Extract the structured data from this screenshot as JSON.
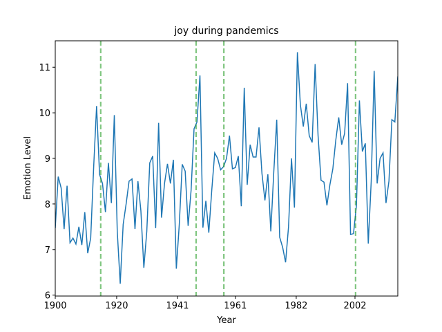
{
  "chart_data": {
    "type": "line",
    "title": "joy during pandemics",
    "xlabel": "Year",
    "ylabel": "Emotion Level",
    "x": [
      1900,
      1901,
      1902,
      1903,
      1904,
      1905,
      1906,
      1907,
      1908,
      1909,
      1910,
      1911,
      1912,
      1913,
      1914,
      1915,
      1916,
      1917,
      1918,
      1919,
      1920,
      1921,
      1922,
      1923,
      1924,
      1925,
      1926,
      1927,
      1928,
      1929,
      1930,
      1931,
      1932,
      1933,
      1934,
      1935,
      1936,
      1937,
      1938,
      1939,
      1940,
      1941,
      1942,
      1943,
      1944,
      1945,
      1946,
      1947,
      1948,
      1949,
      1950,
      1951,
      1952,
      1953,
      1954,
      1955,
      1956,
      1957,
      1958,
      1959,
      1960,
      1961,
      1962,
      1963,
      1964,
      1965,
      1966,
      1967,
      1968,
      1969,
      1970,
      1971,
      1972,
      1973,
      1974,
      1975,
      1976,
      1977,
      1978,
      1979,
      1980,
      1981,
      1982,
      1983,
      1984,
      1985,
      1986,
      1987,
      1988,
      1989,
      1990,
      1991,
      1992,
      1993,
      1994,
      1995,
      1996,
      1997,
      1998,
      1999,
      2000,
      2001,
      2002,
      2003,
      2004,
      2005,
      2006,
      2007,
      2008,
      2009,
      2010,
      2011,
      2012,
      2013,
      2014,
      2015,
      2016
    ],
    "values": [
      7.47,
      8.6,
      8.35,
      7.45,
      8.4,
      7.15,
      7.25,
      7.12,
      7.5,
      7.1,
      7.82,
      6.92,
      7.25,
      8.8,
      10.15,
      8.65,
      8.45,
      7.82,
      8.9,
      8.02,
      9.95,
      7.4,
      6.25,
      7.55,
      8.0,
      8.5,
      8.55,
      7.45,
      8.5,
      7.85,
      6.6,
      7.4,
      8.9,
      9.05,
      7.47,
      9.78,
      7.7,
      8.45,
      8.88,
      8.45,
      8.97,
      6.58,
      7.55,
      8.87,
      8.72,
      7.52,
      8.3,
      9.65,
      9.8,
      10.82,
      7.48,
      8.07,
      7.37,
      8.3,
      9.12,
      9.0,
      8.75,
      8.82,
      9.0,
      9.5,
      8.77,
      8.8,
      9.05,
      7.95,
      10.55,
      8.42,
      9.3,
      9.03,
      9.03,
      9.68,
      8.67,
      8.08,
      8.65,
      7.4,
      8.7,
      9.85,
      7.27,
      7.05,
      6.72,
      7.5,
      9.0,
      7.92,
      11.33,
      10.18,
      9.7,
      10.2,
      9.5,
      9.35,
      11.07,
      9.5,
      8.52,
      8.48,
      7.97,
      8.42,
      8.77,
      9.4,
      9.9,
      9.3,
      9.55,
      10.65,
      7.33,
      7.35,
      7.97,
      10.27,
      9.15,
      9.33,
      7.13,
      8.5,
      10.92,
      8.45,
      9.0,
      9.12,
      8.02,
      8.5,
      9.85,
      9.8,
      10.8
    ],
    "color": "#1f77b4",
    "vlines": {
      "values": [
        1915.4,
        1947.7,
        1957.1,
        2001.7
      ],
      "color": "#2ca02c"
    },
    "xlim": [
      1900,
      2016
    ],
    "ylim": [
      5.98,
      11.58
    ],
    "xticks": [
      1900,
      {
        "value": 1920.8,
        "label": "1920"
      },
      {
        "value": 1941.4,
        "label": "1941"
      },
      {
        "value": 1961.0,
        "label": "1961"
      },
      {
        "value": 1981.6,
        "label": "1982"
      },
      {
        "value": 2001.5,
        "label": "2002"
      }
    ],
    "yticks": [
      6,
      7,
      8,
      9,
      10,
      11
    ]
  }
}
